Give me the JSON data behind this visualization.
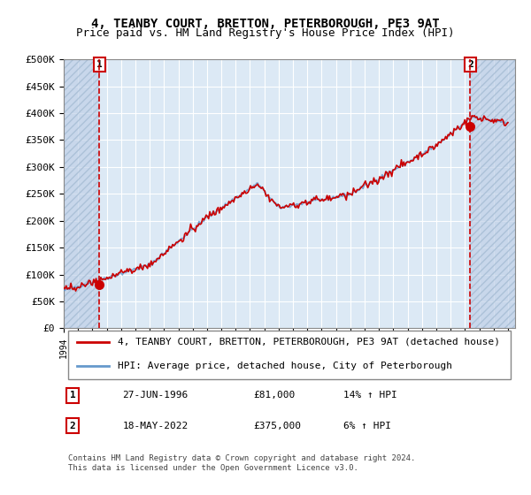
{
  "title": "4, TEANBY COURT, BRETTON, PETERBOROUGH, PE3 9AT",
  "subtitle": "Price paid vs. HM Land Registry's House Price Index (HPI)",
  "ylabel": "",
  "xlabel": "",
  "ylim": [
    0,
    500000
  ],
  "yticks": [
    0,
    50000,
    100000,
    150000,
    200000,
    250000,
    300000,
    350000,
    400000,
    450000,
    500000
  ],
  "ytick_labels": [
    "£0",
    "£50K",
    "£100K",
    "£150K",
    "£200K",
    "£250K",
    "£300K",
    "£350K",
    "£400K",
    "£450K",
    "£500K"
  ],
  "xlim_start": 1994.0,
  "xlim_end": 2025.5,
  "bg_color": "#dce9f5",
  "plot_bg_color": "#dce9f5",
  "grid_color": "#ffffff",
  "hatch_color": "#c0d0e8",
  "sale1_x": 1996.487,
  "sale1_y": 81000,
  "sale1_label": "27-JUN-1996",
  "sale1_price": "£81,000",
  "sale1_hpi": "14% ↑ HPI",
  "sale2_x": 2022.375,
  "sale2_y": 375000,
  "sale2_label": "18-MAY-2022",
  "sale2_price": "£375,000",
  "sale2_hpi": "6% ↑ HPI",
  "line1_color": "#cc0000",
  "line2_color": "#6699cc",
  "marker_color": "#cc0000",
  "vline_color": "#cc0000",
  "legend_line1": "4, TEANBY COURT, BRETTON, PETERBOROUGH, PE3 9AT (detached house)",
  "legend_line2": "HPI: Average price, detached house, City of Peterborough",
  "footer": "Contains HM Land Registry data © Crown copyright and database right 2024.\nThis data is licensed under the Open Government Licence v3.0.",
  "title_fontsize": 10,
  "subtitle_fontsize": 9,
  "tick_fontsize": 8,
  "legend_fontsize": 8,
  "annotation_fontsize": 8
}
